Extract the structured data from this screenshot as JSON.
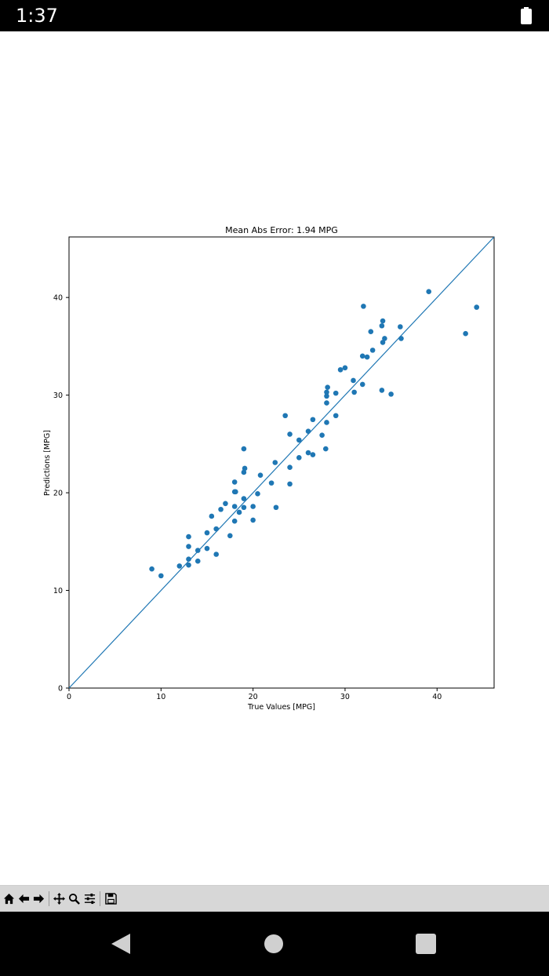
{
  "status_bar": {
    "time": "1:37"
  },
  "chart_data": {
    "type": "scatter",
    "title": "Mean Abs Error: 1.94 MPG",
    "xlabel": "True Values [MPG]",
    "ylabel": "Predictions [MPG]",
    "xlim": [
      0,
      46.2
    ],
    "ylim": [
      0,
      46.2
    ],
    "xticks": [
      0,
      10,
      20,
      30,
      40
    ],
    "yticks": [
      0,
      10,
      20,
      30,
      40
    ],
    "grid": false,
    "reference_line": {
      "from": [
        0,
        0
      ],
      "to": [
        46.2,
        46.2
      ]
    },
    "point_color": "#1f77b4",
    "points": [
      [
        9.0,
        12.2
      ],
      [
        10.0,
        11.5
      ],
      [
        12.0,
        12.5
      ],
      [
        13.0,
        12.6
      ],
      [
        13.0,
        13.2
      ],
      [
        13.0,
        14.5
      ],
      [
        13.0,
        15.5
      ],
      [
        14.0,
        13.0
      ],
      [
        14.0,
        14.1
      ],
      [
        15.0,
        14.3
      ],
      [
        15.0,
        15.9
      ],
      [
        15.5,
        17.6
      ],
      [
        16.0,
        13.7
      ],
      [
        16.0,
        16.3
      ],
      [
        16.5,
        18.3
      ],
      [
        17.0,
        18.9
      ],
      [
        17.5,
        15.6
      ],
      [
        18.0,
        17.1
      ],
      [
        18.0,
        18.6
      ],
      [
        18.0,
        20.1
      ],
      [
        18.1,
        20.1
      ],
      [
        18.0,
        21.1
      ],
      [
        18.5,
        18.0
      ],
      [
        19.0,
        18.5
      ],
      [
        19.0,
        19.4
      ],
      [
        19.0,
        22.1
      ],
      [
        19.1,
        22.5
      ],
      [
        19.0,
        24.5
      ],
      [
        20.0,
        17.2
      ],
      [
        20.0,
        18.6
      ],
      [
        20.5,
        19.9
      ],
      [
        20.8,
        21.8
      ],
      [
        22.0,
        21.0
      ],
      [
        22.4,
        23.1
      ],
      [
        22.5,
        18.5
      ],
      [
        23.5,
        27.9
      ],
      [
        24.0,
        20.9
      ],
      [
        24.0,
        22.6
      ],
      [
        24.0,
        26.0
      ],
      [
        25.0,
        23.6
      ],
      [
        25.0,
        25.4
      ],
      [
        26.0,
        24.1
      ],
      [
        26.0,
        26.3
      ],
      [
        26.5,
        23.9
      ],
      [
        26.5,
        27.5
      ],
      [
        27.5,
        25.9
      ],
      [
        27.9,
        24.5
      ],
      [
        28.0,
        27.2
      ],
      [
        28.0,
        29.2
      ],
      [
        28.0,
        29.9
      ],
      [
        28.0,
        30.3
      ],
      [
        28.1,
        30.8
      ],
      [
        29.0,
        27.9
      ],
      [
        29.0,
        30.2
      ],
      [
        29.5,
        32.6
      ],
      [
        30.0,
        32.8
      ],
      [
        30.9,
        31.5
      ],
      [
        31.0,
        30.3
      ],
      [
        31.9,
        31.1
      ],
      [
        31.9,
        34.0
      ],
      [
        32.0,
        39.1
      ],
      [
        32.4,
        33.9
      ],
      [
        32.8,
        36.5
      ],
      [
        33.0,
        34.6
      ],
      [
        34.0,
        30.5
      ],
      [
        34.0,
        37.1
      ],
      [
        34.1,
        37.6
      ],
      [
        34.1,
        35.4
      ],
      [
        34.3,
        35.8
      ],
      [
        35.0,
        30.1
      ],
      [
        36.0,
        37.0
      ],
      [
        36.1,
        35.8
      ],
      [
        39.1,
        40.6
      ],
      [
        43.1,
        36.3
      ],
      [
        44.3,
        39.0
      ]
    ]
  },
  "toolbar": {
    "buttons": [
      "home-icon",
      "back-arrow-icon",
      "forward-arrow-icon",
      "pan-icon",
      "zoom-icon",
      "configure-subplots-icon",
      "save-icon"
    ]
  },
  "nav_bar": {
    "buttons": [
      "back-triangle-icon",
      "home-circle-icon",
      "recents-square-icon"
    ]
  }
}
